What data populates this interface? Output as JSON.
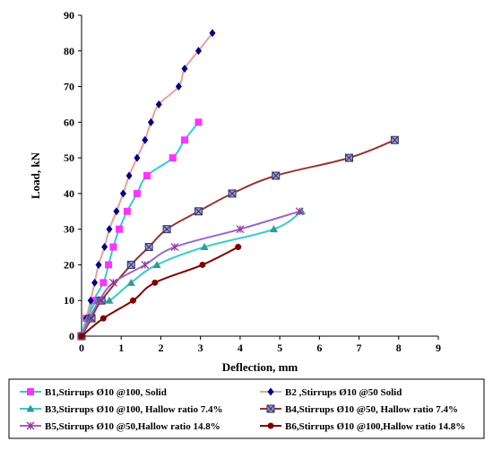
{
  "chart_data": {
    "type": "line",
    "xlabel": "Deflection, mm",
    "ylabel": "Load, kN",
    "xlim": [
      0,
      9
    ],
    "ylim": [
      0,
      90
    ],
    "x_ticks": [
      0,
      1,
      2,
      3,
      4,
      5,
      6,
      7,
      8,
      9
    ],
    "y_ticks": [
      0,
      10,
      20,
      30,
      40,
      50,
      60,
      70,
      80,
      90
    ],
    "grid": false,
    "legend_placement": "bottom",
    "series": [
      {
        "name": "B1,Stirrups Ø10 @100, Solid",
        "line_color": "#33cccc",
        "marker_color": "#ff33ff",
        "marker": "square",
        "points": [
          [
            0,
            0
          ],
          [
            0.12,
            5
          ],
          [
            0.3,
            10
          ],
          [
            0.55,
            15
          ],
          [
            0.68,
            20
          ],
          [
            0.8,
            25
          ],
          [
            0.95,
            30
          ],
          [
            1.15,
            35
          ],
          [
            1.4,
            40
          ],
          [
            1.65,
            45
          ],
          [
            2.3,
            50
          ],
          [
            2.6,
            55
          ],
          [
            2.95,
            60
          ]
        ]
      },
      {
        "name": "B2 ,Stirrups Ø10 @50 Solid",
        "line_color": "#e8a0a0",
        "marker_color": "#000080",
        "marker": "diamond",
        "points": [
          [
            0,
            0
          ],
          [
            0.12,
            5
          ],
          [
            0.23,
            10
          ],
          [
            0.33,
            15
          ],
          [
            0.43,
            20
          ],
          [
            0.58,
            25
          ],
          [
            0.7,
            30
          ],
          [
            0.88,
            35
          ],
          [
            1.05,
            40
          ],
          [
            1.2,
            45
          ],
          [
            1.4,
            50
          ],
          [
            1.6,
            55
          ],
          [
            1.75,
            60
          ],
          [
            1.95,
            65
          ],
          [
            2.45,
            70
          ],
          [
            2.6,
            75
          ],
          [
            2.95,
            80
          ],
          [
            3.3,
            85
          ]
        ]
      },
      {
        "name": "B3,Stirrups Ø10 @100, Hallow ratio 7.4%",
        "line_color": "#33cccc",
        "marker_color": "#339999",
        "marker": "triangle",
        "points": [
          [
            0,
            0
          ],
          [
            0.15,
            5
          ],
          [
            0.4,
            10
          ],
          [
            0.7,
            10
          ],
          [
            1.25,
            15
          ],
          [
            1.9,
            20
          ],
          [
            3.1,
            25
          ],
          [
            4.85,
            30
          ],
          [
            5.55,
            35
          ]
        ]
      },
      {
        "name": "B4,Stirrups Ø10 @50, Hallow ratio 7.4%",
        "line_color": "#993333",
        "marker_color": "#9999cc",
        "marker": "square-x",
        "points": [
          [
            0,
            0
          ],
          [
            0.25,
            5
          ],
          [
            0.5,
            10
          ],
          [
            1.25,
            20
          ],
          [
            1.7,
            25
          ],
          [
            2.15,
            30
          ],
          [
            2.95,
            35
          ],
          [
            3.8,
            40
          ],
          [
            4.9,
            45
          ],
          [
            6.75,
            50
          ],
          [
            7.9,
            55
          ]
        ]
      },
      {
        "name": "B5,Stirrups Ø10 @50,Hallow ratio 14.8%",
        "line_color": "#9966cc",
        "marker_color": "#993399",
        "marker": "star",
        "points": [
          [
            0,
            0
          ],
          [
            0.2,
            5
          ],
          [
            0.45,
            10
          ],
          [
            0.8,
            15
          ],
          [
            1.6,
            20
          ],
          [
            2.35,
            25
          ],
          [
            4.0,
            30
          ],
          [
            5.5,
            35
          ]
        ]
      },
      {
        "name": "B6,Stirrups Ø10 @100,Hallow ratio 14.8%",
        "line_color": "#800000",
        "marker_color": "#800000",
        "marker": "circle",
        "points": [
          [
            0,
            0
          ],
          [
            0.55,
            5
          ],
          [
            1.3,
            10
          ],
          [
            1.85,
            15
          ],
          [
            3.05,
            20
          ],
          [
            3.95,
            25
          ]
        ]
      }
    ]
  }
}
